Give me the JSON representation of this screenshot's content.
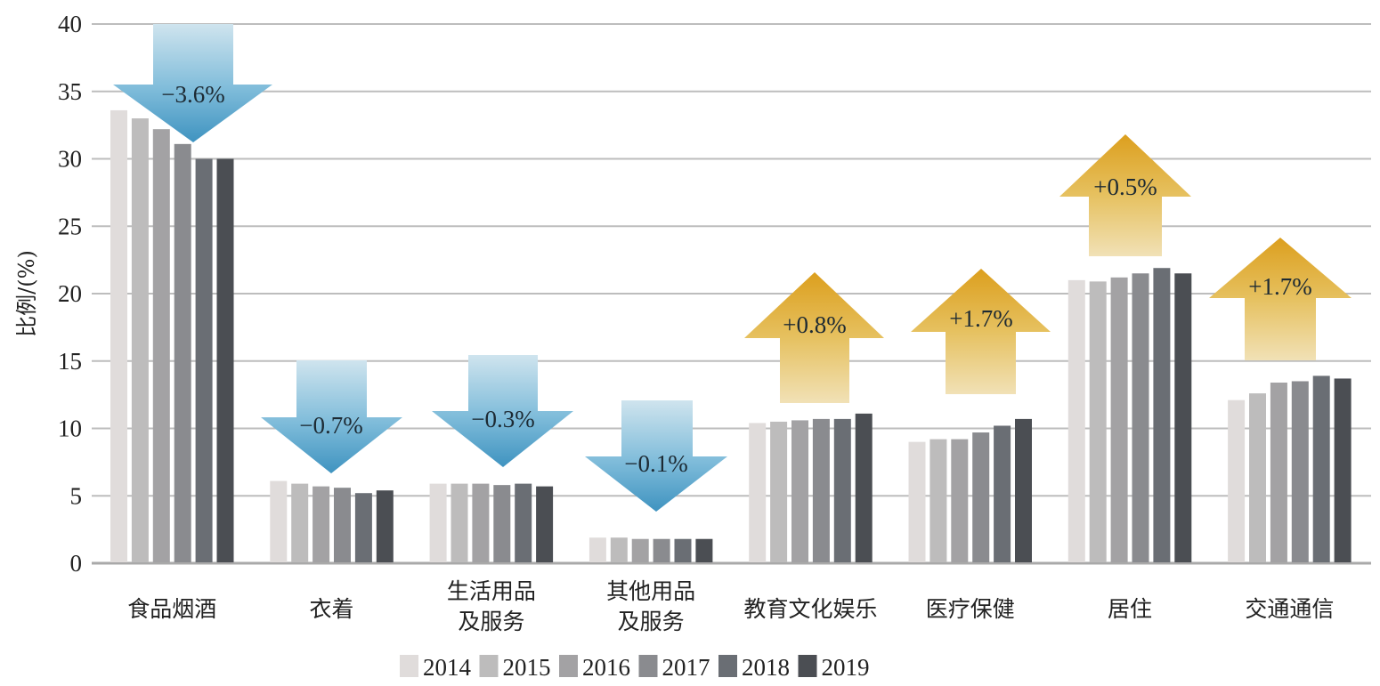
{
  "chart_data": {
    "type": "bar",
    "title": "",
    "xlabel": "",
    "ylabel": "比例/(%)",
    "ylim": [
      0,
      40
    ],
    "yticks": [
      0,
      5,
      10,
      15,
      20,
      25,
      30,
      35,
      40
    ],
    "grid": true,
    "legend_position": "bottom",
    "categories": [
      [
        "食品烟酒"
      ],
      [
        "衣着"
      ],
      [
        "生活用品",
        "及服务"
      ],
      [
        "其他用品",
        "及服务"
      ],
      [
        "教育文化娱乐"
      ],
      [
        "医疗保健"
      ],
      [
        "居住"
      ],
      [
        "交通通信"
      ]
    ],
    "series": [
      {
        "name": "2014",
        "color": "#e0dcdb",
        "values": [
          33.6,
          6.1,
          5.9,
          1.9,
          10.4,
          9.0,
          21.0,
          12.1
        ]
      },
      {
        "name": "2015",
        "color": "#bdbcbc",
        "values": [
          33.0,
          5.9,
          5.9,
          1.9,
          10.5,
          9.2,
          20.9,
          12.6
        ]
      },
      {
        "name": "2016",
        "color": "#a3a2a4",
        "values": [
          32.2,
          5.7,
          5.9,
          1.8,
          10.6,
          9.2,
          21.2,
          13.4
        ]
      },
      {
        "name": "2017",
        "color": "#8a8b8f",
        "values": [
          31.1,
          5.6,
          5.8,
          1.8,
          10.7,
          9.7,
          21.5,
          13.5
        ]
      },
      {
        "name": "2018",
        "color": "#6a6e74",
        "values": [
          30.0,
          5.2,
          5.9,
          1.8,
          10.7,
          10.2,
          21.9,
          13.9
        ]
      },
      {
        "name": "2019",
        "color": "#4b4e53",
        "values": [
          30.0,
          5.4,
          5.7,
          1.8,
          11.1,
          10.7,
          21.5,
          13.7
        ]
      }
    ],
    "annotations": [
      {
        "category": "食品烟酒",
        "text": "−3.6%",
        "direction": "down",
        "color": "#4a9cc5"
      },
      {
        "category": "衣着",
        "text": "−0.7%",
        "direction": "down",
        "color": "#4a9cc5"
      },
      {
        "category": "生活用品及服务",
        "text": "−0.3%",
        "direction": "down",
        "color": "#4a9cc5"
      },
      {
        "category": "其他用品及服务",
        "text": "−0.1%",
        "direction": "down",
        "color": "#4a9cc5"
      },
      {
        "category": "教育文化娱乐",
        "text": "+0.8%",
        "direction": "up",
        "color": "#dda52a"
      },
      {
        "category": "医疗保健",
        "text": "+1.7%",
        "direction": "up",
        "color": "#dda52a"
      },
      {
        "category": "居住",
        "text": "+0.5%",
        "direction": "up",
        "color": "#dda52a"
      },
      {
        "category": "交通通信",
        "text": "+1.7%",
        "direction": "up",
        "color": "#dda52a"
      }
    ]
  }
}
